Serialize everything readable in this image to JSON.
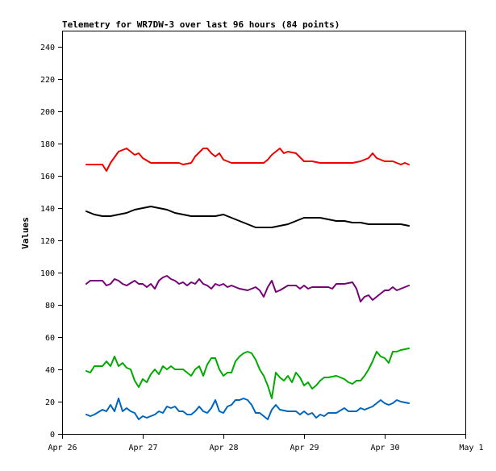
{
  "chart_data": {
    "type": "line",
    "title": "Telemetry for WR7DW-3 over last 96 hours (84 points)",
    "ylabel": "Values",
    "xlabel": "",
    "ylim": [
      0,
      250
    ],
    "xlim": [
      0,
      5
    ],
    "grid": false,
    "y_ticks": [
      0,
      20,
      40,
      60,
      80,
      100,
      120,
      140,
      160,
      180,
      200,
      220,
      240
    ],
    "x_ticks": [
      {
        "x": 0,
        "label": "Apr 26"
      },
      {
        "x": 1,
        "label": "Apr 27"
      },
      {
        "x": 2,
        "label": "Apr 28"
      },
      {
        "x": 3,
        "label": "Apr 29"
      },
      {
        "x": 4,
        "label": "Apr 30"
      },
      {
        "x": 5,
        "label": "May 1"
      }
    ],
    "series": [
      {
        "color": "#ee0000",
        "points": [
          [
            0.3,
            167
          ],
          [
            0.5,
            167
          ],
          [
            0.55,
            163
          ],
          [
            0.6,
            168
          ],
          [
            0.7,
            175
          ],
          [
            0.8,
            177
          ],
          [
            0.9,
            173
          ],
          [
            0.95,
            174
          ],
          [
            1.0,
            171
          ],
          [
            1.1,
            168
          ],
          [
            1.2,
            168
          ],
          [
            1.3,
            168
          ],
          [
            1.45,
            168
          ],
          [
            1.5,
            167
          ],
          [
            1.6,
            168
          ],
          [
            1.65,
            172
          ],
          [
            1.75,
            177
          ],
          [
            1.8,
            177
          ],
          [
            1.85,
            174
          ],
          [
            1.9,
            172
          ],
          [
            1.95,
            174
          ],
          [
            2.0,
            170
          ],
          [
            2.1,
            168
          ],
          [
            2.2,
            168
          ],
          [
            2.3,
            168
          ],
          [
            2.5,
            168
          ],
          [
            2.55,
            170
          ],
          [
            2.6,
            173
          ],
          [
            2.7,
            177
          ],
          [
            2.75,
            174
          ],
          [
            2.8,
            175
          ],
          [
            2.9,
            174
          ],
          [
            3.0,
            169
          ],
          [
            3.1,
            169
          ],
          [
            3.2,
            168
          ],
          [
            3.4,
            168
          ],
          [
            3.6,
            168
          ],
          [
            3.7,
            169
          ],
          [
            3.8,
            171
          ],
          [
            3.85,
            174
          ],
          [
            3.9,
            171
          ],
          [
            4.0,
            169
          ],
          [
            4.1,
            169
          ],
          [
            4.2,
            167
          ],
          [
            4.25,
            168
          ],
          [
            4.3,
            167
          ]
        ]
      },
      {
        "color": "#000000",
        "points": [
          [
            0.3,
            138
          ],
          [
            0.4,
            136
          ],
          [
            0.5,
            135
          ],
          [
            0.6,
            135
          ],
          [
            0.7,
            136
          ],
          [
            0.8,
            137
          ],
          [
            0.9,
            139
          ],
          [
            1.0,
            140
          ],
          [
            1.1,
            141
          ],
          [
            1.2,
            140
          ],
          [
            1.3,
            139
          ],
          [
            1.4,
            137
          ],
          [
            1.5,
            136
          ],
          [
            1.6,
            135
          ],
          [
            1.7,
            135
          ],
          [
            1.8,
            135
          ],
          [
            1.9,
            135
          ],
          [
            2.0,
            136
          ],
          [
            2.1,
            134
          ],
          [
            2.2,
            132
          ],
          [
            2.3,
            130
          ],
          [
            2.4,
            128
          ],
          [
            2.5,
            128
          ],
          [
            2.6,
            128
          ],
          [
            2.7,
            129
          ],
          [
            2.8,
            130
          ],
          [
            2.9,
            132
          ],
          [
            3.0,
            134
          ],
          [
            3.1,
            134
          ],
          [
            3.2,
            134
          ],
          [
            3.3,
            133
          ],
          [
            3.4,
            132
          ],
          [
            3.5,
            132
          ],
          [
            3.6,
            131
          ],
          [
            3.7,
            131
          ],
          [
            3.8,
            130
          ],
          [
            3.9,
            130
          ],
          [
            4.0,
            130
          ],
          [
            4.1,
            130
          ],
          [
            4.2,
            130
          ],
          [
            4.3,
            129
          ]
        ]
      },
      {
        "color": "#770077",
        "points": [
          [
            0.3,
            93
          ],
          [
            0.35,
            95
          ],
          [
            0.5,
            95
          ],
          [
            0.55,
            92
          ],
          [
            0.6,
            93
          ],
          [
            0.65,
            96
          ],
          [
            0.7,
            95
          ],
          [
            0.75,
            93
          ],
          [
            0.8,
            92
          ],
          [
            0.9,
            95
          ],
          [
            0.95,
            93
          ],
          [
            1.0,
            93
          ],
          [
            1.05,
            91
          ],
          [
            1.1,
            93
          ],
          [
            1.15,
            90
          ],
          [
            1.2,
            95
          ],
          [
            1.25,
            97
          ],
          [
            1.3,
            98
          ],
          [
            1.35,
            96
          ],
          [
            1.4,
            95
          ],
          [
            1.45,
            93
          ],
          [
            1.5,
            94
          ],
          [
            1.55,
            92
          ],
          [
            1.6,
            94
          ],
          [
            1.65,
            93
          ],
          [
            1.7,
            96
          ],
          [
            1.75,
            93
          ],
          [
            1.8,
            92
          ],
          [
            1.85,
            90
          ],
          [
            1.9,
            93
          ],
          [
            1.95,
            92
          ],
          [
            2.0,
            93
          ],
          [
            2.05,
            91
          ],
          [
            2.1,
            92
          ],
          [
            2.2,
            90
          ],
          [
            2.3,
            89
          ],
          [
            2.35,
            90
          ],
          [
            2.4,
            91
          ],
          [
            2.45,
            89
          ],
          [
            2.5,
            85
          ],
          [
            2.55,
            91
          ],
          [
            2.6,
            95
          ],
          [
            2.65,
            88
          ],
          [
            2.7,
            89
          ],
          [
            2.8,
            92
          ],
          [
            2.9,
            92
          ],
          [
            2.95,
            90
          ],
          [
            3.0,
            92
          ],
          [
            3.05,
            90
          ],
          [
            3.1,
            91
          ],
          [
            3.2,
            91
          ],
          [
            3.3,
            91
          ],
          [
            3.35,
            90
          ],
          [
            3.4,
            93
          ],
          [
            3.5,
            93
          ],
          [
            3.6,
            94
          ],
          [
            3.65,
            90
          ],
          [
            3.7,
            82
          ],
          [
            3.75,
            85
          ],
          [
            3.8,
            86
          ],
          [
            3.85,
            83
          ],
          [
            3.9,
            85
          ],
          [
            4.0,
            89
          ],
          [
            4.05,
            89
          ],
          [
            4.1,
            91
          ],
          [
            4.15,
            89
          ],
          [
            4.2,
            90
          ],
          [
            4.25,
            91
          ],
          [
            4.3,
            92
          ]
        ]
      },
      {
        "color": "#00aa00",
        "points": [
          [
            0.3,
            39
          ],
          [
            0.35,
            38
          ],
          [
            0.4,
            42
          ],
          [
            0.5,
            42
          ],
          [
            0.55,
            45
          ],
          [
            0.6,
            42
          ],
          [
            0.65,
            48
          ],
          [
            0.7,
            42
          ],
          [
            0.75,
            44
          ],
          [
            0.8,
            41
          ],
          [
            0.85,
            40
          ],
          [
            0.9,
            33
          ],
          [
            0.95,
            29
          ],
          [
            1.0,
            34
          ],
          [
            1.05,
            32
          ],
          [
            1.1,
            37
          ],
          [
            1.15,
            40
          ],
          [
            1.2,
            37
          ],
          [
            1.25,
            42
          ],
          [
            1.3,
            40
          ],
          [
            1.35,
            42
          ],
          [
            1.4,
            40
          ],
          [
            1.5,
            40
          ],
          [
            1.55,
            38
          ],
          [
            1.6,
            36
          ],
          [
            1.65,
            40
          ],
          [
            1.7,
            42
          ],
          [
            1.75,
            36
          ],
          [
            1.8,
            43
          ],
          [
            1.85,
            47
          ],
          [
            1.9,
            47
          ],
          [
            1.95,
            40
          ],
          [
            2.0,
            36
          ],
          [
            2.05,
            38
          ],
          [
            2.1,
            38
          ],
          [
            2.15,
            45
          ],
          [
            2.2,
            48
          ],
          [
            2.25,
            50
          ],
          [
            2.3,
            51
          ],
          [
            2.35,
            50
          ],
          [
            2.4,
            46
          ],
          [
            2.45,
            40
          ],
          [
            2.5,
            36
          ],
          [
            2.55,
            30
          ],
          [
            2.6,
            22
          ],
          [
            2.65,
            38
          ],
          [
            2.7,
            35
          ],
          [
            2.75,
            33
          ],
          [
            2.8,
            36
          ],
          [
            2.85,
            32
          ],
          [
            2.9,
            38
          ],
          [
            2.95,
            35
          ],
          [
            3.0,
            30
          ],
          [
            3.05,
            32
          ],
          [
            3.1,
            28
          ],
          [
            3.15,
            30
          ],
          [
            3.2,
            33
          ],
          [
            3.25,
            35
          ],
          [
            3.3,
            35
          ],
          [
            3.4,
            36
          ],
          [
            3.5,
            34
          ],
          [
            3.55,
            32
          ],
          [
            3.6,
            31
          ],
          [
            3.65,
            33
          ],
          [
            3.7,
            33
          ],
          [
            3.75,
            36
          ],
          [
            3.8,
            40
          ],
          [
            3.85,
            45
          ],
          [
            3.9,
            51
          ],
          [
            3.95,
            48
          ],
          [
            4.0,
            47
          ],
          [
            4.05,
            44
          ],
          [
            4.1,
            51
          ],
          [
            4.15,
            51
          ],
          [
            4.2,
            52
          ],
          [
            4.3,
            53
          ]
        ]
      },
      {
        "color": "#0066bb",
        "points": [
          [
            0.3,
            12
          ],
          [
            0.35,
            11
          ],
          [
            0.4,
            12
          ],
          [
            0.5,
            15
          ],
          [
            0.55,
            14
          ],
          [
            0.6,
            18
          ],
          [
            0.65,
            14
          ],
          [
            0.7,
            22
          ],
          [
            0.75,
            14
          ],
          [
            0.8,
            16
          ],
          [
            0.85,
            14
          ],
          [
            0.9,
            13
          ],
          [
            0.95,
            9
          ],
          [
            1.0,
            11
          ],
          [
            1.05,
            10
          ],
          [
            1.1,
            11
          ],
          [
            1.15,
            12
          ],
          [
            1.2,
            14
          ],
          [
            1.25,
            13
          ],
          [
            1.3,
            17
          ],
          [
            1.35,
            16
          ],
          [
            1.4,
            17
          ],
          [
            1.45,
            14
          ],
          [
            1.5,
            14
          ],
          [
            1.55,
            12
          ],
          [
            1.6,
            12
          ],
          [
            1.65,
            14
          ],
          [
            1.7,
            17
          ],
          [
            1.75,
            14
          ],
          [
            1.8,
            13
          ],
          [
            1.85,
            16
          ],
          [
            1.9,
            21
          ],
          [
            1.95,
            14
          ],
          [
            2.0,
            13
          ],
          [
            2.05,
            17
          ],
          [
            2.1,
            18
          ],
          [
            2.15,
            21
          ],
          [
            2.2,
            21
          ],
          [
            2.25,
            22
          ],
          [
            2.3,
            21
          ],
          [
            2.35,
            18
          ],
          [
            2.4,
            13
          ],
          [
            2.45,
            13
          ],
          [
            2.5,
            11
          ],
          [
            2.55,
            9
          ],
          [
            2.6,
            15
          ],
          [
            2.65,
            18
          ],
          [
            2.7,
            15
          ],
          [
            2.8,
            14
          ],
          [
            2.9,
            14
          ],
          [
            2.95,
            12
          ],
          [
            3.0,
            14
          ],
          [
            3.05,
            12
          ],
          [
            3.1,
            13
          ],
          [
            3.15,
            10
          ],
          [
            3.2,
            12
          ],
          [
            3.25,
            11
          ],
          [
            3.3,
            13
          ],
          [
            3.4,
            13
          ],
          [
            3.5,
            16
          ],
          [
            3.55,
            14
          ],
          [
            3.6,
            14
          ],
          [
            3.65,
            14
          ],
          [
            3.7,
            16
          ],
          [
            3.75,
            15
          ],
          [
            3.8,
            16
          ],
          [
            3.85,
            17
          ],
          [
            3.9,
            19
          ],
          [
            3.95,
            21
          ],
          [
            4.0,
            19
          ],
          [
            4.05,
            18
          ],
          [
            4.1,
            19
          ],
          [
            4.15,
            21
          ],
          [
            4.2,
            20
          ],
          [
            4.3,
            19
          ]
        ]
      }
    ]
  }
}
